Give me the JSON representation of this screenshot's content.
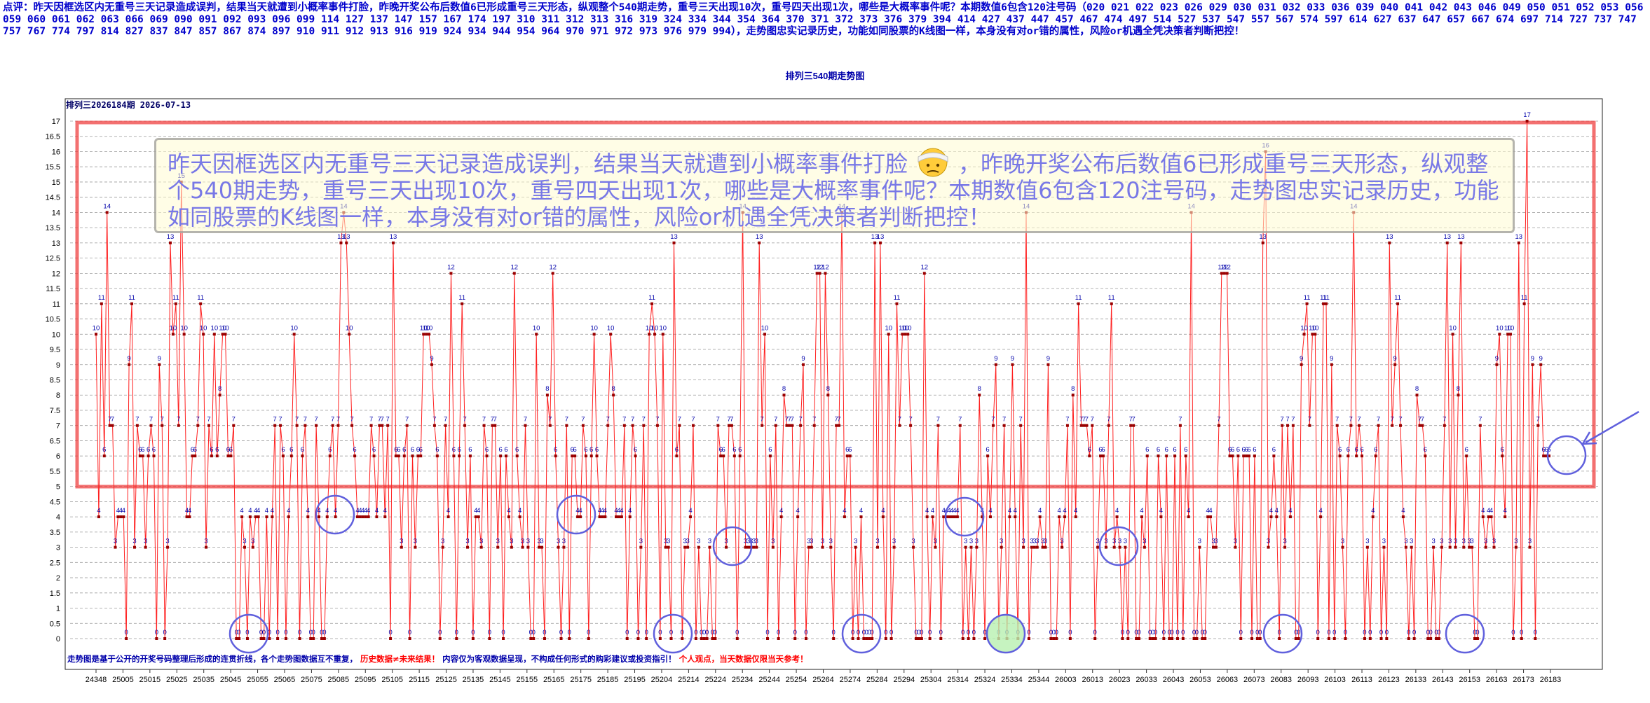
{
  "commentary": "点评：昨天因框选区内无重号三天记录造成误判，结果当天就遭到小概率事件打脸，昨晚开奖公布后数值6已形成重号三天形态，纵观整个540期走势，重号三天出现10次，重号四天出现1次，哪些是大概率事件呢？本期数值6包含120注号码（020 021 022 023 026 029 030 031 032 033 036 039 040 041 042 043 046 049 050 051 052 053 056 059 060 061 062 063 066 069 090 091 092 093 096 099 114 127 137 147 157 167 174 197 310 311 312 313 316 319 324 334 344 354 364 370 371 372 373 376 379 394 414 427 437 447 457 467 474 497 514 527 537 547 557 567 574 597 614 627 637 647 657 667 674 697 714 727 737 747 757 767 774 797 814 827 837 847 857 867 874 897 910 911 912 913 916 919 924 934 944 954 964 970 971 972 973 976 979 994），走势图忠实记录历史，功能如同股票的K线图一样，本身没有对or错的属性，风险or机遇全凭决策者判断把控！",
  "callout": {
    "text_before": "昨天因框选区内无重号三天记录造成误判，结果当天就遭到小概率事件打脸",
    "text_after": "，昨晚开奖公布后数值6已形成重号三天形态，纵观整个540期走势，重号三天出现10次，重号四天出现1次，哪些是大概率事件呢？本期数值6包含120注号码，走势图忠实记录历史，功能如同股票的K线图一样，本身没有对or错的属性，风险or机遇全凭决策者判断把控！",
    "emoji": "bandaged-face-icon"
  },
  "footer": {
    "part1": "走势图是基于公开的开奖号码整理后形成的连贯折线，各个走势图数据互不重复，",
    "part2": "历史数据≠未来结果！",
    "part3": "内容仅为客观数据呈现，不构成任何形式的购彩建议或投资指引！",
    "part4": "个人观点，当天数据仅限当天参考！"
  },
  "colors": {
    "line": "#ff2020",
    "point": "#990000",
    "label": "#0000aa",
    "frame_box": "#ee3333",
    "circle": "#6060dd",
    "highlight_circle_fill": "#b8f0b0",
    "commentary": "#0000cc",
    "footer_red": "#ff0000"
  },
  "chart_data": {
    "type": "line",
    "title": "排列三540期走势图",
    "subtitle": "排列三2026184期 2026-07-13",
    "xlabel": "",
    "ylabel": "",
    "ylim": [
      0,
      17
    ],
    "y_ticks": [
      "0",
      "0.5",
      "1",
      "1.5",
      "2",
      "2.5",
      "3",
      "3.5",
      "4",
      "4.5",
      "5",
      "5.5",
      "6",
      "6.5",
      "7",
      "7.5",
      "8",
      "8.5",
      "9",
      "9.5",
      "10",
      "10.5",
      "11",
      "11.5",
      "12",
      "12.5",
      "13",
      "13.5",
      "14",
      "14.5",
      "15",
      "15.5",
      "16",
      "16.5",
      "17"
    ],
    "grid": true,
    "legend": "none",
    "x_tick_labels": [
      "24348",
      "25005",
      "25015",
      "25025",
      "25035",
      "25045",
      "25055",
      "25065",
      "25075",
      "25085",
      "25095",
      "25105",
      "25115",
      "25125",
      "25135",
      "25145",
      "25155",
      "25165",
      "25175",
      "25185",
      "25195",
      "25204",
      "25214",
      "25224",
      "25234",
      "25244",
      "25254",
      "25264",
      "25274",
      "25284",
      "25294",
      "25304",
      "25314",
      "25324",
      "25334",
      "25344",
      "26003",
      "26013",
      "26023",
      "26033",
      "26043",
      "26053",
      "26063",
      "26073",
      "26083",
      "26093",
      "26103",
      "26113",
      "26123",
      "26133",
      "26143",
      "26153",
      "26163",
      "26173",
      "26183"
    ],
    "n_points": 540,
    "values": [
      10,
      4,
      11,
      6,
      14,
      7,
      7,
      3,
      4,
      4,
      4,
      0,
      9,
      11,
      3,
      7,
      6,
      6,
      3,
      6,
      7,
      6,
      0,
      9,
      7,
      0,
      3,
      13,
      10,
      11,
      7,
      15,
      10,
      4,
      4,
      6,
      6,
      7,
      11,
      10,
      3,
      7,
      6,
      10,
      6,
      8,
      10,
      10,
      6,
      6,
      7,
      0,
      0,
      4,
      3,
      0,
      4,
      3,
      4,
      4,
      0,
      0,
      4,
      0,
      4,
      7,
      0,
      7,
      6,
      0,
      4,
      6,
      10,
      7,
      0,
      6,
      7,
      4,
      0,
      0,
      7,
      4,
      0,
      0,
      4,
      6,
      7,
      4,
      7,
      13,
      14,
      13,
      10,
      7,
      6,
      4,
      4,
      4,
      4,
      4,
      7,
      6,
      4,
      7,
      7,
      4,
      7,
      0,
      13,
      6,
      6,
      3,
      6,
      7,
      0,
      6,
      3,
      6,
      6,
      10,
      10,
      10,
      9,
      7,
      6,
      0,
      3,
      7,
      4,
      12,
      6,
      0,
      6,
      11,
      7,
      3,
      6,
      0,
      4,
      4,
      3,
      7,
      6,
      0,
      7,
      7,
      3,
      6,
      0,
      6,
      4,
      3,
      12,
      6,
      4,
      3,
      7,
      3,
      0,
      0,
      10,
      3,
      3,
      0,
      8,
      7,
      12,
      6,
      3,
      0,
      3,
      7,
      0,
      6,
      6,
      4,
      4,
      7,
      6,
      0,
      6,
      10,
      6,
      4,
      4,
      4,
      7,
      10,
      8,
      4,
      4,
      4,
      7,
      0,
      4,
      7,
      6,
      0,
      3,
      7,
      0,
      10,
      11,
      10,
      7,
      0,
      10,
      3,
      3,
      0,
      13,
      6,
      7,
      0,
      3,
      3,
      4,
      7,
      0,
      3,
      0,
      0,
      0,
      3,
      0,
      0,
      7,
      6,
      6,
      3,
      7,
      7,
      6,
      0,
      6,
      14,
      3,
      3,
      3,
      3,
      3,
      13,
      7,
      10,
      0,
      6,
      3,
      7,
      0,
      4,
      8,
      7,
      7,
      7,
      0,
      4,
      7,
      9,
      0,
      3,
      3,
      7,
      12,
      12,
      3,
      12,
      8,
      3,
      0,
      7,
      7,
      14,
      4,
      6,
      6,
      0,
      3,
      0,
      4,
      0,
      0,
      0,
      0,
      13,
      3,
      13,
      4,
      0,
      10,
      0,
      3,
      11,
      7,
      10,
      10,
      10,
      7,
      3,
      0,
      0,
      0,
      12,
      4,
      0,
      4,
      3,
      7,
      0,
      4,
      4,
      4,
      4,
      4,
      4,
      7,
      0,
      3,
      0,
      3,
      0,
      3,
      8,
      4,
      0,
      6,
      4,
      7,
      9,
      0,
      3,
      7,
      0,
      4,
      9,
      4,
      0,
      7,
      3,
      14,
      0,
      3,
      3,
      3,
      4,
      3,
      3,
      9,
      0,
      0,
      0,
      4,
      3,
      4,
      7,
      0,
      8,
      4,
      11,
      7,
      7,
      7,
      6,
      7,
      0,
      3,
      6,
      6,
      3,
      7,
      11,
      3,
      4,
      3,
      0,
      3,
      0,
      7,
      7,
      0,
      0,
      4,
      3,
      6,
      0,
      0,
      0,
      6,
      4,
      0,
      6,
      0,
      0,
      6,
      0,
      7,
      0,
      6,
      4,
      14,
      0,
      0,
      3,
      0,
      0,
      4,
      4,
      3,
      3,
      7,
      12,
      12,
      12,
      6,
      6,
      3,
      6,
      0,
      6,
      6,
      6,
      0,
      6,
      0,
      0,
      13,
      16,
      3,
      4,
      6,
      4,
      0,
      7,
      3,
      7,
      4,
      7,
      0,
      0,
      9,
      10,
      11,
      7,
      10,
      10,
      0,
      4,
      11,
      11,
      0,
      9,
      0,
      7,
      6,
      3,
      0,
      6,
      7,
      14,
      6,
      7,
      6,
      0,
      3,
      0,
      4,
      6,
      7,
      0,
      3,
      0,
      13,
      7,
      9,
      11,
      7,
      4,
      3,
      0,
      3,
      0,
      8,
      7,
      7,
      6,
      0,
      0,
      3,
      0,
      0,
      3,
      7,
      13,
      3,
      10,
      3,
      8,
      13,
      3,
      6,
      3,
      3,
      0,
      0,
      7,
      4,
      3,
      4,
      4,
      3,
      9,
      10,
      6,
      4,
      10,
      10,
      0,
      3,
      13,
      0,
      11,
      17,
      3,
      9,
      0,
      7,
      9,
      6,
      6,
      6
    ]
  }
}
